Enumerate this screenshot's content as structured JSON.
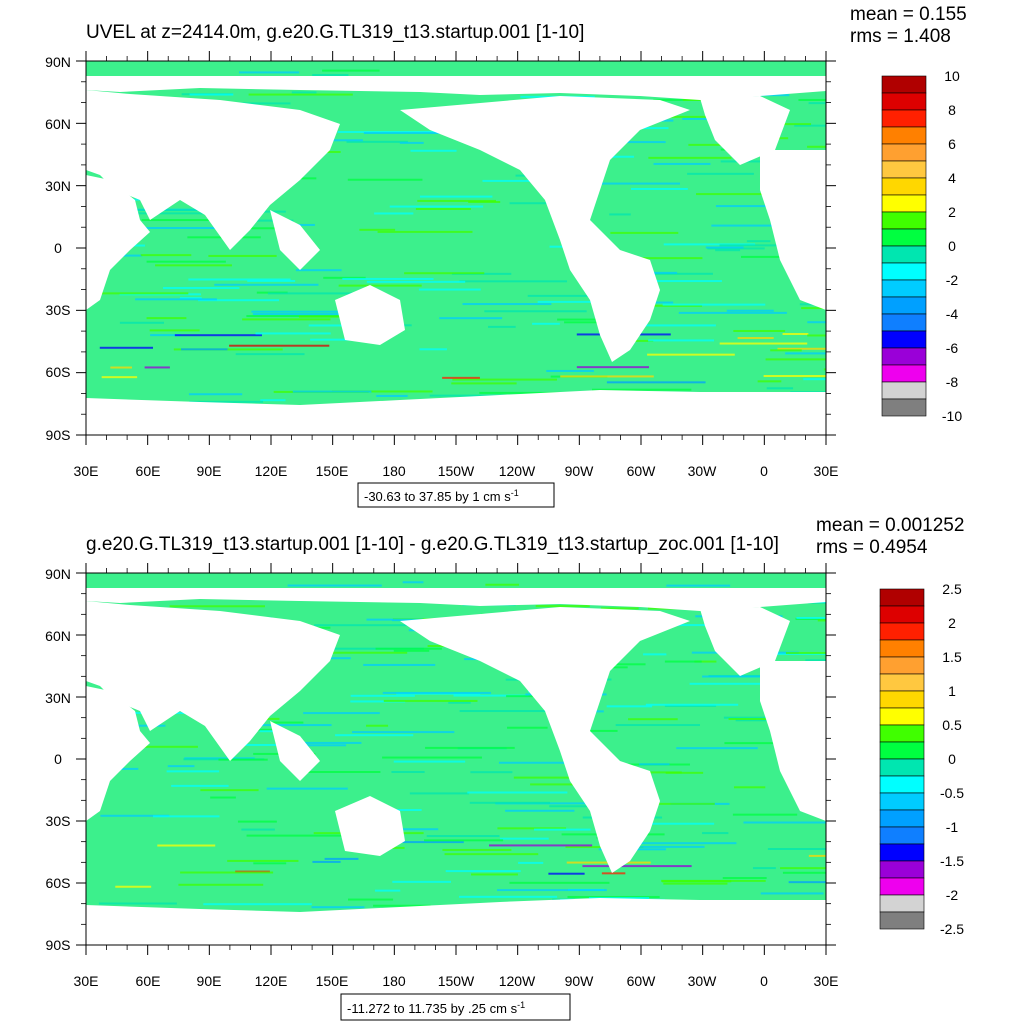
{
  "panels": [
    {
      "title": "UVEL at z=2414.0m, g.e20.G.TL319_t13.startup.001 [1-10]",
      "stats": {
        "mean": "mean = 0.155",
        "rms": "rms = 1.408"
      },
      "range_label": "-30.63 to 37.85 by 1 cm s",
      "range_sup": "-1",
      "colorbar": {
        "labels": [
          "10",
          "8",
          "6",
          "4",
          "2",
          "0",
          "-2",
          "-4",
          "-6",
          "-8",
          "-10"
        ]
      }
    },
    {
      "title": "g.e20.G.TL319_t13.startup.001 [1-10] - g.e20.G.TL319_t13.startup_zoc.001 [1-10]",
      "stats": {
        "mean": "mean = 0.001252",
        "rms": "rms = 0.4954"
      },
      "range_label": "-11.272 to 11.735 by .25 cm s",
      "range_sup": "-1",
      "colorbar": {
        "labels": [
          "2.5",
          "2",
          "1.5",
          "1",
          "0.5",
          "0",
          "-0.5",
          "-1",
          "-1.5",
          "-2",
          "-2.5"
        ]
      }
    }
  ],
  "axes": {
    "lat_labels": [
      "90N",
      "60N",
      "30N",
      "0",
      "30S",
      "60S",
      "90S"
    ],
    "lon_labels": [
      "30E",
      "60E",
      "90E",
      "120E",
      "150E",
      "180",
      "150W",
      "120W",
      "90W",
      "60W",
      "30W",
      "0",
      "30E"
    ]
  },
  "colors": {
    "palette": [
      "#7f7f7f",
      "#d3d3d3",
      "#ee00ee",
      "#9a00d8",
      "#0000ff",
      "#0f7fff",
      "#00a0ff",
      "#00ccff",
      "#00ffff",
      "#00e6b0",
      "#00ff40",
      "#40ff00",
      "#ffff00",
      "#ffd700",
      "#ffc840",
      "#ffa030",
      "#ff8000",
      "#ff2000",
      "#dd0000",
      "#b00000"
    ],
    "land": "#ffffff"
  }
}
